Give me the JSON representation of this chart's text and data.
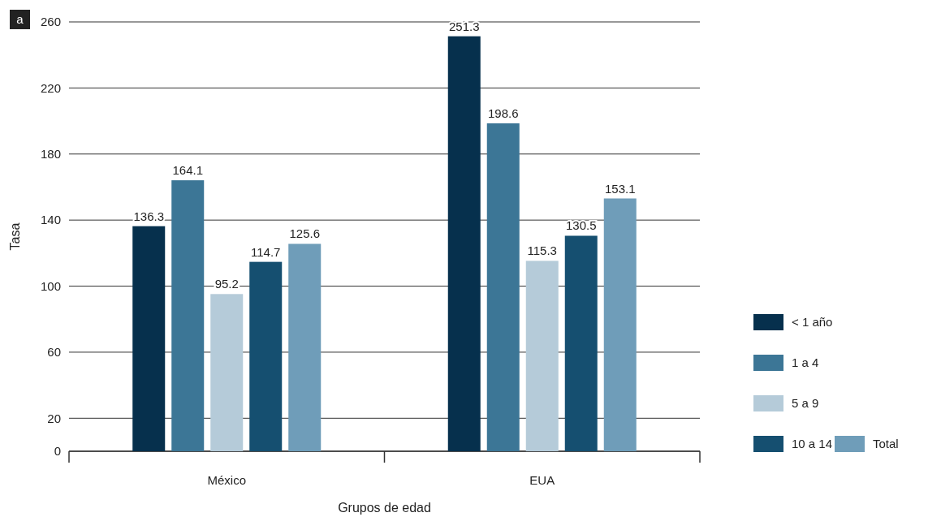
{
  "chart_data": {
    "type": "bar",
    "xlabel": "Grupos de edad",
    "ylabel": "Tasa",
    "annotations": [
      "a"
    ],
    "categories": [
      "México",
      "EUA"
    ],
    "series": [
      {
        "name": "< 1 año",
        "color": "#06304d",
        "values": [
          136.3,
          251.3
        ]
      },
      {
        "name": "1 a 4",
        "color": "#3c7696",
        "values": [
          164.1,
          198.6
        ]
      },
      {
        "name": "5 a 9",
        "color": "#b5cbd9",
        "values": [
          95.2,
          115.3
        ]
      },
      {
        "name": "10 a 14",
        "color": "#154f70",
        "values": [
          114.7,
          130.5
        ]
      },
      {
        "name": "Total",
        "color": "#6f9db9",
        "values": [
          125.6,
          153.1
        ]
      }
    ],
    "ylim": [
      0,
      260
    ],
    "yticks": [
      0,
      20,
      60,
      100,
      140,
      180,
      220,
      260
    ],
    "grid": "y",
    "legend": "right",
    "data_labels": true
  }
}
